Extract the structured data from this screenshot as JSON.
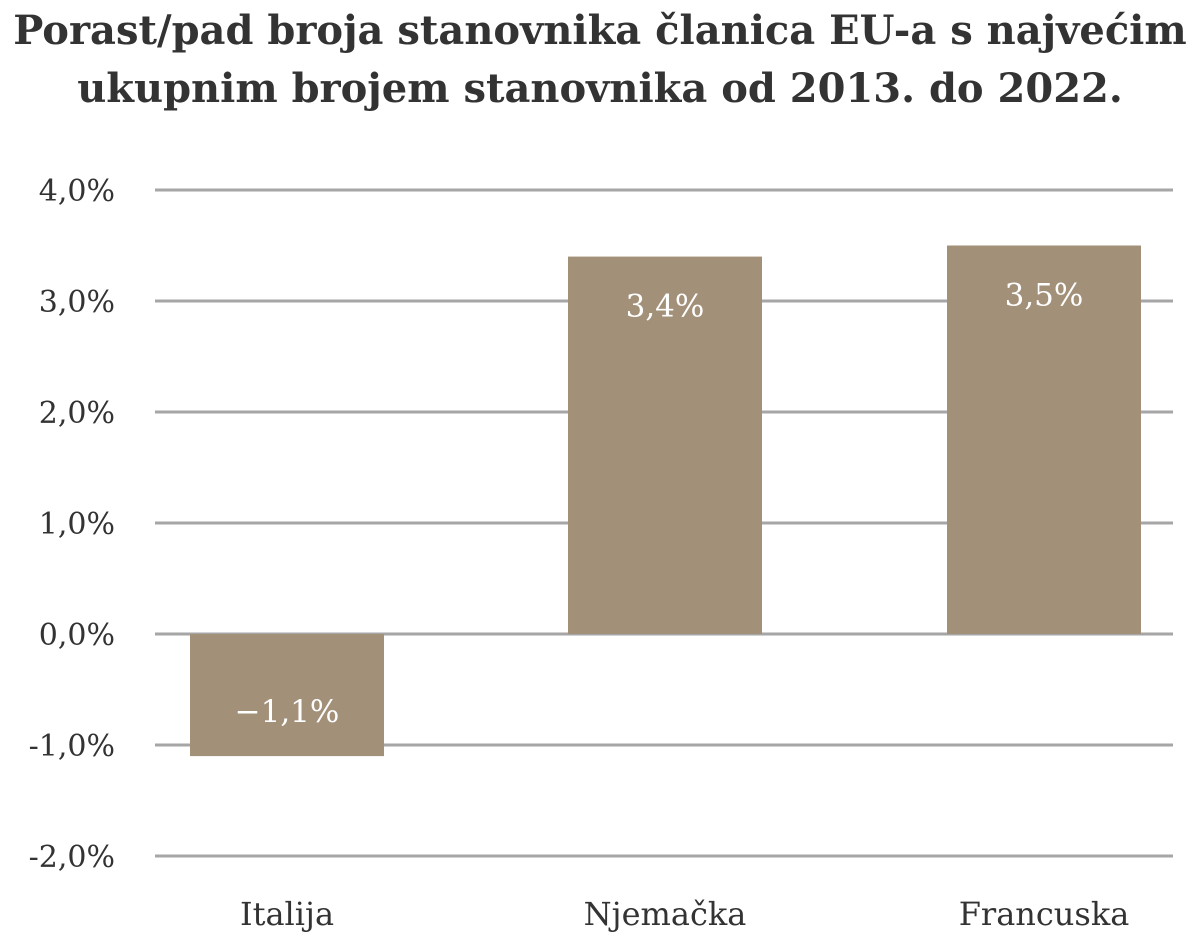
{
  "chart_data": {
    "type": "bar",
    "title_lines": [
      "Porast/pad broja stanovnika članica EU-a s najvećim",
      "ukupnim brojem stanovnika od 2013. do  2022."
    ],
    "categories": [
      "Italija",
      "Njemačka",
      "Francuska"
    ],
    "values": [
      -1.1,
      3.4,
      3.5
    ],
    "data_labels": [
      "−1,1%",
      "3,4%",
      "3,5%"
    ],
    "y_ticks": [
      4.0,
      3.0,
      2.0,
      1.0,
      0.0,
      -1.0,
      -2.0
    ],
    "y_tick_labels": [
      "4,0%",
      "3,0%",
      "2,0%",
      "1,0%",
      "0,0%",
      "-1,0%",
      "-2,0%"
    ],
    "ylim": [
      -2.0,
      4.0
    ],
    "grid": true,
    "legend": "none",
    "bar_color": "#a39079",
    "grid_color": "#a6a6a6",
    "text_color": "#333333",
    "label_color": "#ffffff"
  }
}
